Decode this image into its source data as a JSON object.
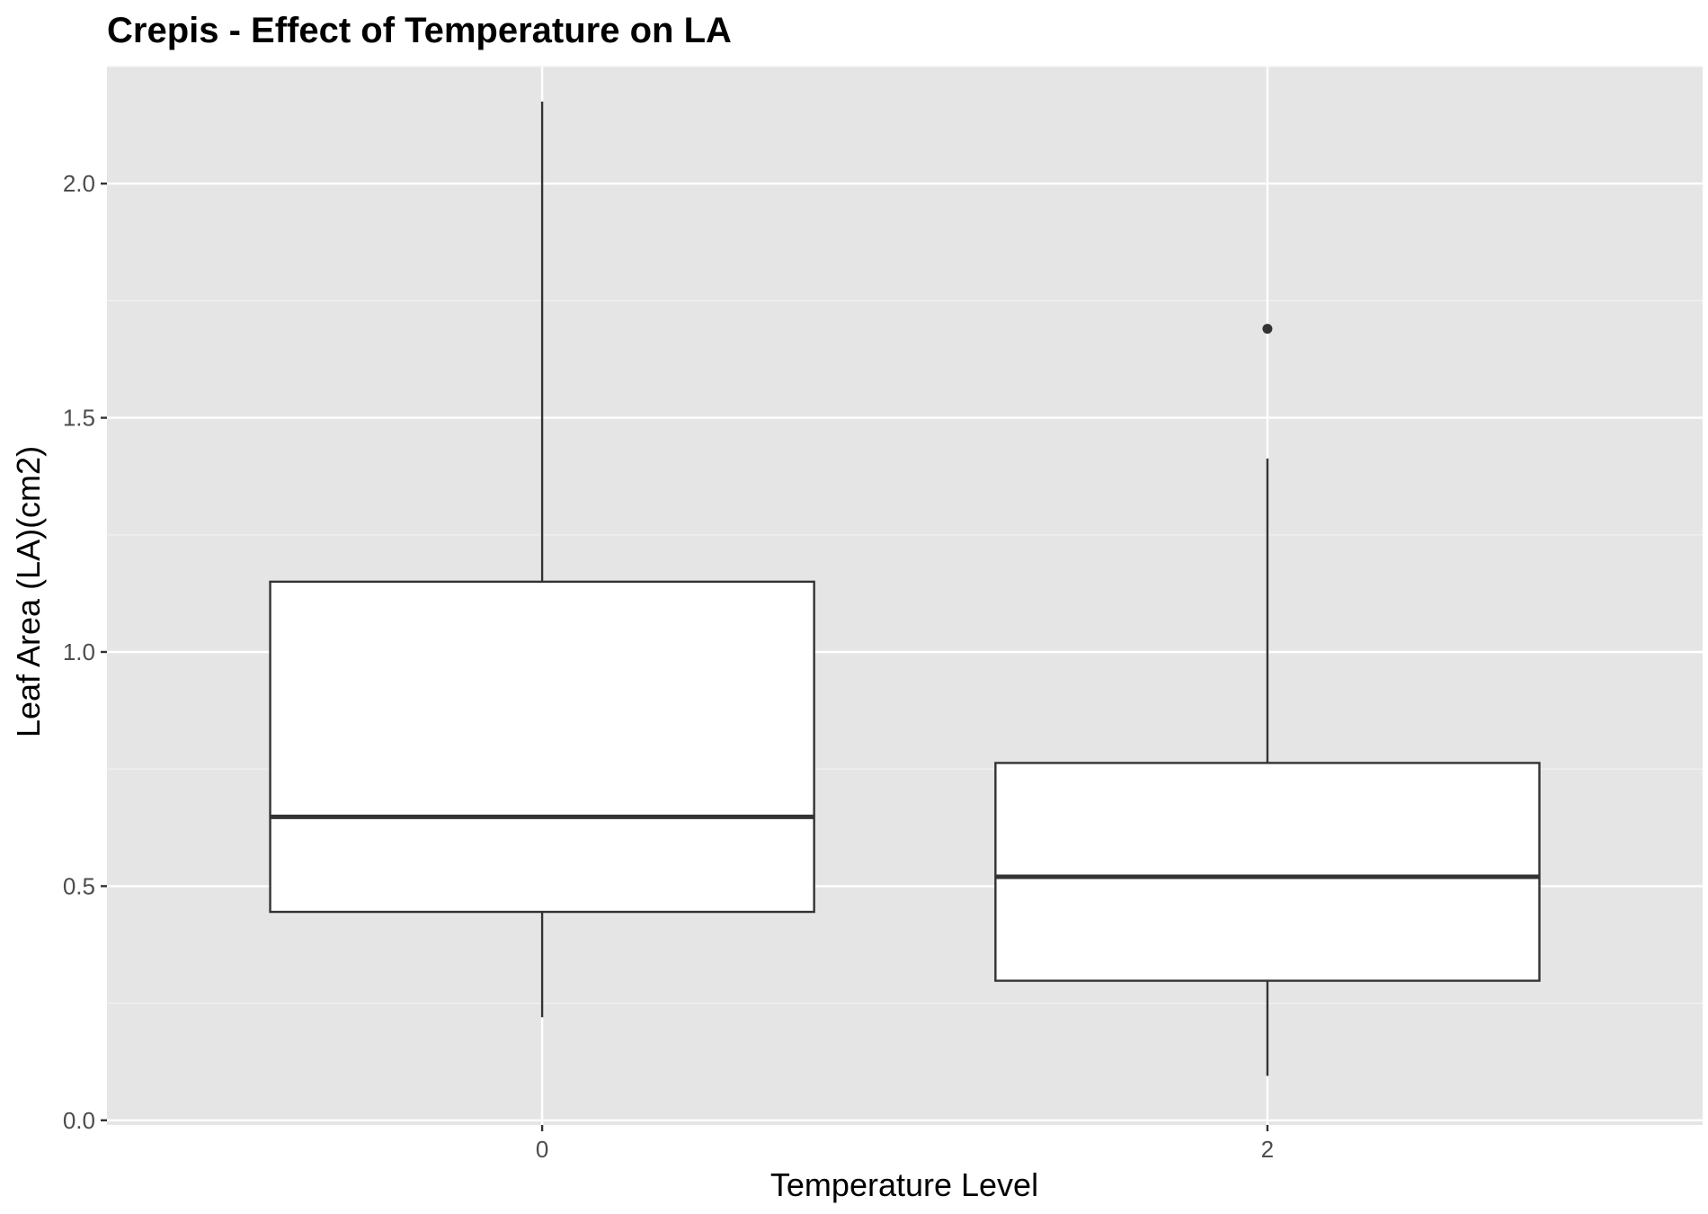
{
  "chart_data": {
    "type": "boxplot",
    "title": "Crepis - Effect of Temperature on LA",
    "xlabel": "Temperature Level",
    "ylabel": "Leaf Area (LA)(cm2)",
    "categories": [
      "0",
      "2"
    ],
    "ylim": [
      -0.01,
      2.25
    ],
    "yticks": [
      0.0,
      0.5,
      1.0,
      1.5,
      2.0
    ],
    "ytick_labels": [
      "0.0",
      "0.5",
      "1.0",
      "1.5",
      "2.0"
    ],
    "grid": true,
    "boxes": [
      {
        "category": "0",
        "whisker_low": 0.22,
        "q1": 0.445,
        "median": 0.648,
        "q3": 1.15,
        "whisker_high": 2.175,
        "outliers": []
      },
      {
        "category": "2",
        "whisker_low": 0.095,
        "q1": 0.298,
        "median": 0.52,
        "q3": 0.763,
        "whisker_high": 1.413,
        "outliers": [
          1.69
        ]
      }
    ]
  },
  "colors": {
    "panel_background": "#E5E5E5",
    "grid_major": "#FFFFFF",
    "grid_minor": "#F2F2F2",
    "box_fill": "#FFFFFF",
    "box_stroke": "#333333",
    "tick_text": "#4D4D4D",
    "text": "#000000"
  }
}
